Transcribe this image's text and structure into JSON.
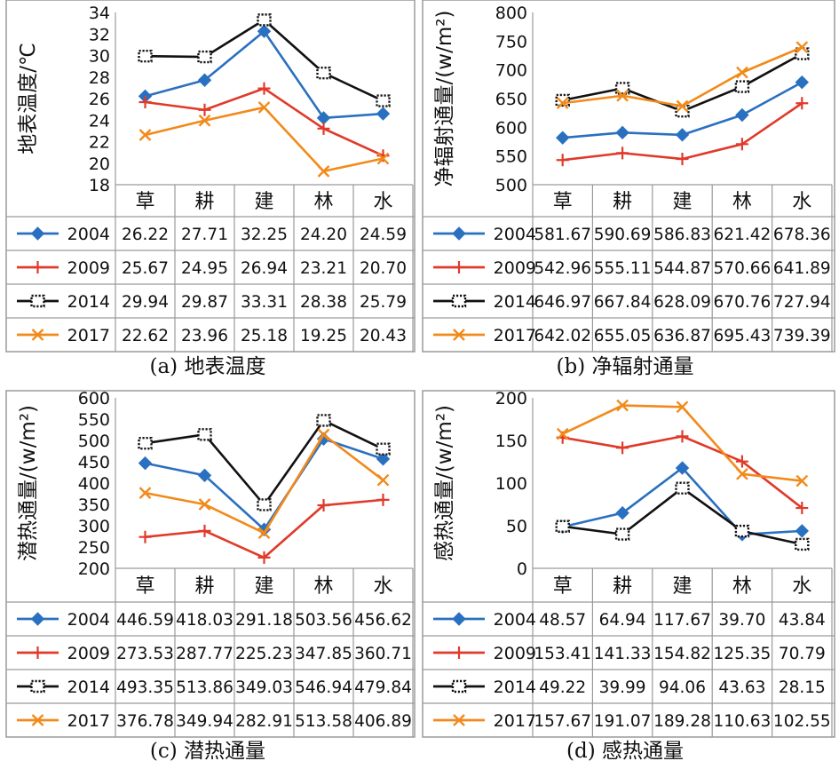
{
  "chart_data": [
    {
      "type": "line",
      "caption": "(a) 地表温度",
      "ylabel": "地表温度/℃",
      "categories": [
        "草",
        "耕",
        "建",
        "林",
        "水"
      ],
      "ylim": [
        18,
        34
      ],
      "yticks": [
        18,
        20,
        22,
        24,
        26,
        28,
        30,
        32,
        34
      ],
      "grid": false,
      "legend": "table-below",
      "series": [
        {
          "name": "2004",
          "values": [
            26.22,
            27.71,
            32.25,
            24.2,
            24.59
          ],
          "labels": [
            "26.22",
            "27.71",
            "32.25",
            "24.20",
            "24.59"
          ],
          "color": "#2a70c0",
          "marker": "diamond"
        },
        {
          "name": "2009",
          "values": [
            25.67,
            24.95,
            26.94,
            23.21,
            20.7
          ],
          "labels": [
            "25.67",
            "24.95",
            "26.94",
            "23.21",
            "20.70"
          ],
          "color": "#e03a2a",
          "marker": "plus"
        },
        {
          "name": "2014",
          "values": [
            29.94,
            29.87,
            33.31,
            28.38,
            25.79
          ],
          "labels": [
            "29.94",
            "29.87",
            "33.31",
            "28.38",
            "25.79"
          ],
          "color": "#111111",
          "marker": "dotted-square"
        },
        {
          "name": "2017",
          "values": [
            22.62,
            23.96,
            25.18,
            19.25,
            20.43
          ],
          "labels": [
            "22.62",
            "23.96",
            "25.18",
            "19.25",
            "20.43"
          ],
          "color": "#f28a1a",
          "marker": "x"
        }
      ]
    },
    {
      "type": "line",
      "caption": "(b) 净辐射通量",
      "ylabel": "净辐射通量/(w/m²)",
      "categories": [
        "草",
        "耕",
        "建",
        "林",
        "水"
      ],
      "ylim": [
        500,
        800
      ],
      "yticks": [
        500,
        550,
        600,
        650,
        700,
        750,
        800
      ],
      "grid": false,
      "legend": "table-below",
      "series": [
        {
          "name": "2004",
          "values": [
            581.67,
            590.69,
            586.83,
            621.42,
            678.36
          ],
          "labels": [
            "581.67",
            "590.69",
            "586.83",
            "621.42",
            "678.36"
          ],
          "color": "#2a70c0",
          "marker": "diamond"
        },
        {
          "name": "2009",
          "values": [
            542.96,
            555.11,
            544.87,
            570.66,
            641.89
          ],
          "labels": [
            "542.96",
            "555.11",
            "544.87",
            "570.66",
            "641.89"
          ],
          "color": "#e03a2a",
          "marker": "plus"
        },
        {
          "name": "2014",
          "values": [
            646.97,
            667.84,
            628.09,
            670.76,
            727.94
          ],
          "labels": [
            "646.97",
            "667.84",
            "628.09",
            "670.76",
            "727.94"
          ],
          "color": "#111111",
          "marker": "dotted-square"
        },
        {
          "name": "2017",
          "values": [
            642.02,
            655.05,
            636.87,
            695.43,
            739.39
          ],
          "labels": [
            "642.02",
            "655.05",
            "636.87",
            "695.43",
            "739.39"
          ],
          "color": "#f28a1a",
          "marker": "x"
        }
      ]
    },
    {
      "type": "line",
      "caption": "(c) 潜热通量",
      "ylabel": "潜热通量/(w/m²)",
      "categories": [
        "草",
        "耕",
        "建",
        "林",
        "水"
      ],
      "ylim": [
        200,
        600
      ],
      "yticks": [
        200,
        250,
        300,
        350,
        400,
        450,
        500,
        550,
        600
      ],
      "grid": false,
      "legend": "table-below",
      "series": [
        {
          "name": "2004",
          "values": [
            446.59,
            418.03,
            291.18,
            503.56,
            456.62
          ],
          "labels": [
            "446.59",
            "418.03",
            "291.18",
            "503.56",
            "456.62"
          ],
          "color": "#2a70c0",
          "marker": "diamond"
        },
        {
          "name": "2009",
          "values": [
            273.53,
            287.77,
            225.23,
            347.85,
            360.71
          ],
          "labels": [
            "273.53",
            "287.77",
            "225.23",
            "347.85",
            "360.71"
          ],
          "color": "#e03a2a",
          "marker": "plus"
        },
        {
          "name": "2014",
          "values": [
            493.35,
            513.86,
            349.03,
            546.94,
            479.84
          ],
          "labels": [
            "493.35",
            "513.86",
            "349.03",
            "546.94",
            "479.84"
          ],
          "color": "#111111",
          "marker": "dotted-square"
        },
        {
          "name": "2017",
          "values": [
            376.78,
            349.94,
            282.91,
            513.58,
            406.89
          ],
          "labels": [
            "376.78",
            "349.94",
            "282.91",
            "513.58",
            "406.89"
          ],
          "color": "#f28a1a",
          "marker": "x"
        }
      ]
    },
    {
      "type": "line",
      "caption": "(d) 感热通量",
      "ylabel": "感热通量/(w/m²)",
      "categories": [
        "草",
        "耕",
        "建",
        "林",
        "水"
      ],
      "ylim": [
        0,
        200
      ],
      "yticks": [
        0,
        50,
        100,
        150,
        200
      ],
      "grid": false,
      "legend": "table-below",
      "series": [
        {
          "name": "2004",
          "values": [
            48.57,
            64.94,
            117.67,
            39.7,
            43.84
          ],
          "labels": [
            "48.57",
            "64.94",
            "117.67",
            "39.70",
            "43.84"
          ],
          "color": "#2a70c0",
          "marker": "diamond"
        },
        {
          "name": "2009",
          "values": [
            153.41,
            141.33,
            154.82,
            125.35,
            70.79
          ],
          "labels": [
            "153.41",
            "141.33",
            "154.82",
            "125.35",
            "70.79"
          ],
          "color": "#e03a2a",
          "marker": "plus"
        },
        {
          "name": "2014",
          "values": [
            49.22,
            39.99,
            94.06,
            43.63,
            28.15
          ],
          "labels": [
            "49.22",
            "39.99",
            "94.06",
            "43.63",
            "28.15"
          ],
          "color": "#111111",
          "marker": "dotted-square"
        },
        {
          "name": "2017",
          "values": [
            157.67,
            191.07,
            189.28,
            110.63,
            102.55
          ],
          "labels": [
            "157.67",
            "191.07",
            "189.28",
            "110.63",
            "102.55"
          ],
          "color": "#f28a1a",
          "marker": "x"
        }
      ]
    }
  ]
}
